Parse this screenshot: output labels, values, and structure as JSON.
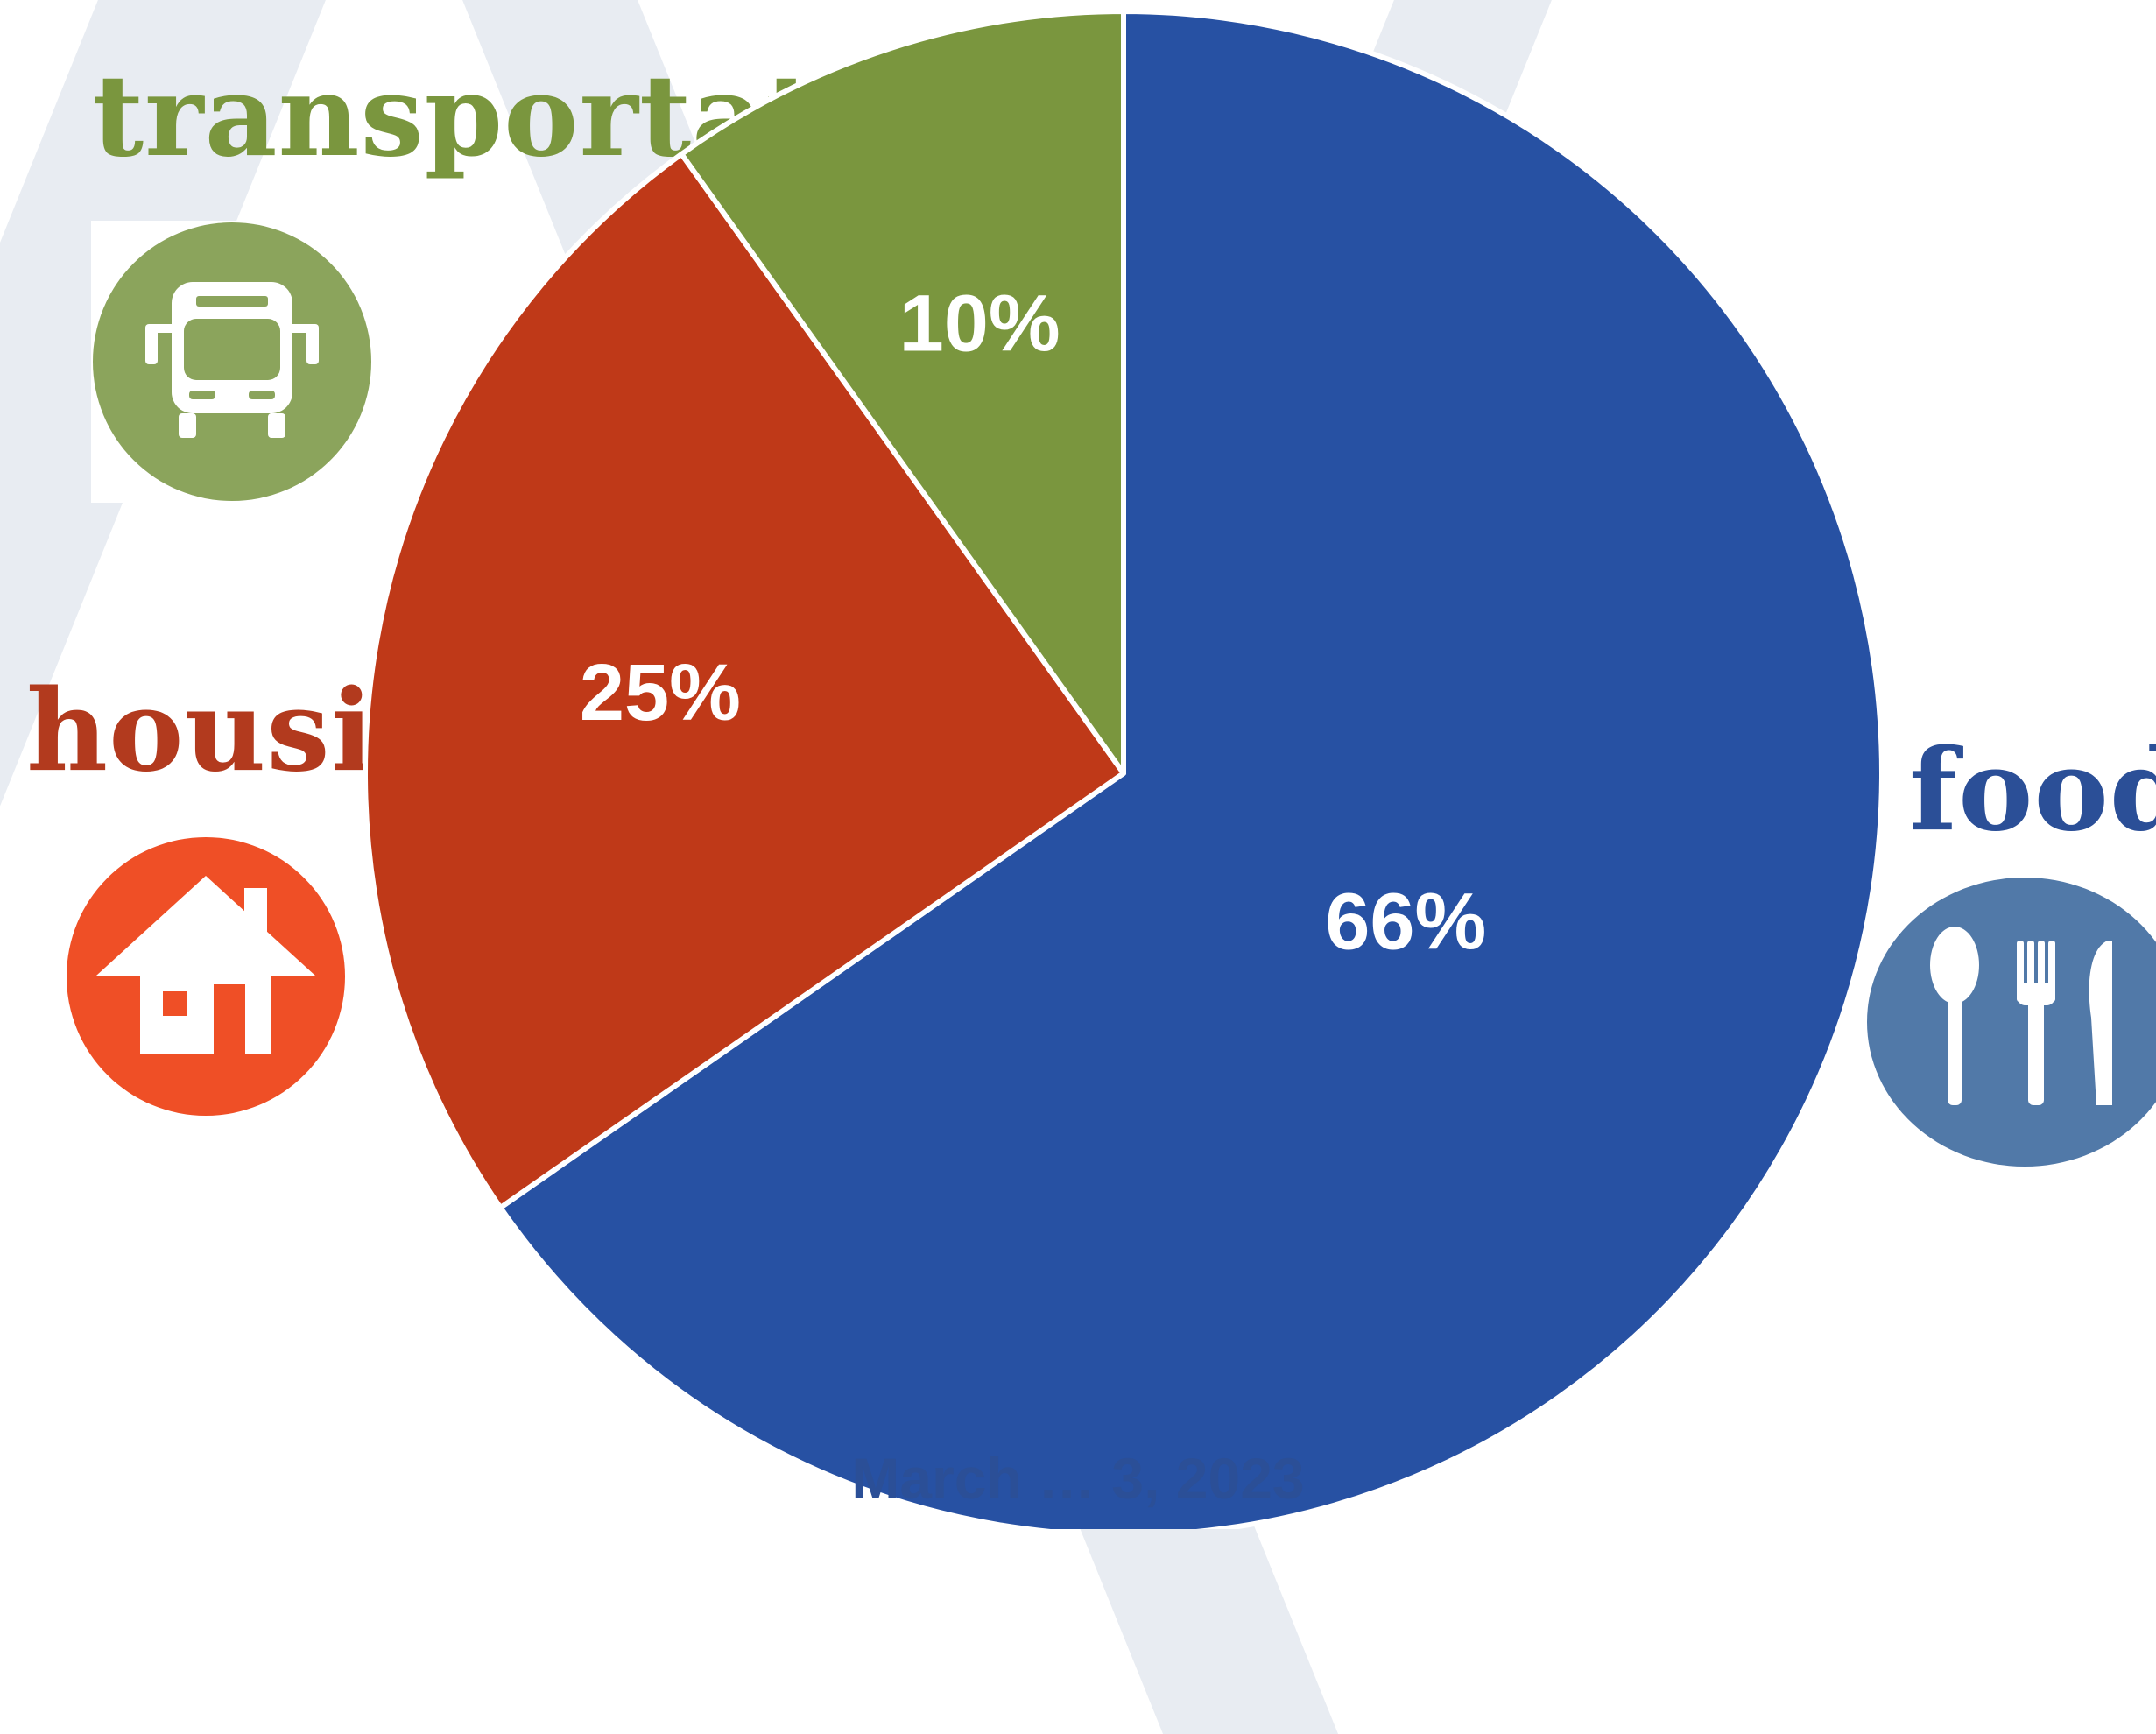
{
  "chart_data": {
    "type": "pie",
    "slices": [
      {
        "category": "food",
        "label": "66%",
        "value": 66,
        "color": "#2751a3"
      },
      {
        "category": "housing",
        "label": "25%",
        "value": 25,
        "color": "#bf3918"
      },
      {
        "category": "transportation",
        "label": "10%",
        "value": 10,
        "color": "#7a963e"
      }
    ]
  },
  "labels": {
    "transportation": {
      "text": "transportation",
      "color": "#7a963e"
    },
    "housing": {
      "text": "housing",
      "color": "#b23a1e"
    },
    "food": {
      "text": "food",
      "color": "#2b4f97"
    }
  },
  "icons": {
    "transportation": {
      "name": "bus-icon",
      "color": "#8ba45c"
    },
    "housing": {
      "name": "house-icon",
      "color": "#ef4f26"
    },
    "food": {
      "name": "utensils-icon",
      "color": "#5179a8"
    }
  },
  "footer": {
    "text": "March … 3, 2023"
  }
}
